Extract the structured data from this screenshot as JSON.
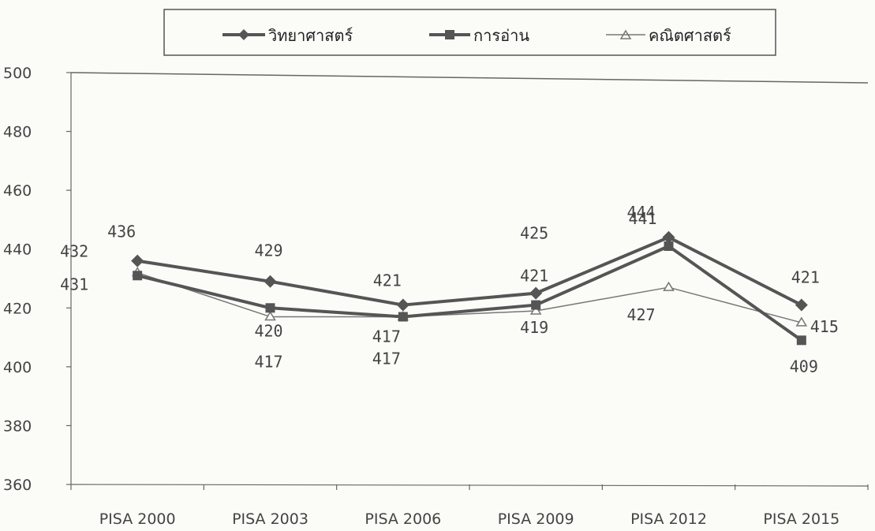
{
  "chart_data": {
    "type": "line",
    "title": "",
    "xlabel": "",
    "ylabel": "",
    "categories": [
      "PISA 2000",
      "PISA 2003",
      "PISA 2006",
      "PISA 2009",
      "PISA 2012",
      "PISA 2015"
    ],
    "ylim": [
      360,
      500
    ],
    "yticks": [
      "360",
      "380",
      "400",
      "420",
      "440",
      "460",
      "480",
      "500"
    ],
    "grid": false,
    "legend_position": "top",
    "series": [
      {
        "name": "วิทยาศาสตร์",
        "values": [
          436,
          429,
          421,
          425,
          444,
          421
        ],
        "marker": "diamond",
        "color": "#555555"
      },
      {
        "name": "การอ่าน",
        "values": [
          431,
          420,
          417,
          421,
          441,
          409
        ],
        "marker": "square",
        "color": "#555555"
      },
      {
        "name": "คณิตศาสตร์",
        "values": [
          432,
          417,
          417,
          419,
          427,
          415
        ],
        "marker": "triangle",
        "color": "#777777"
      }
    ]
  }
}
